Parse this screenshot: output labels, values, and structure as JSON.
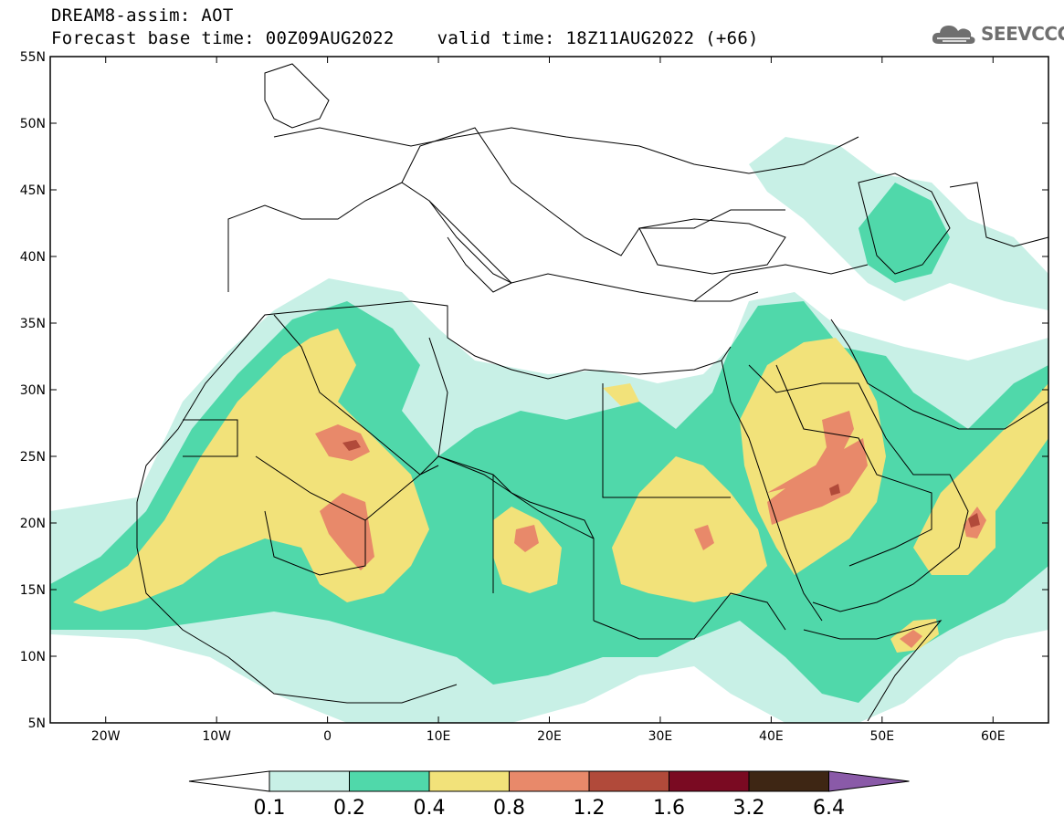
{
  "header": {
    "line1": "DREAM8-assim: AOT",
    "forecast_base": "Forecast base time: 00Z09AUG2022",
    "valid_time": "valid time: 18Z11AUG2022 (+66)"
  },
  "logo": {
    "text": "SEEVCCC",
    "icon": "cloud-logo-icon"
  },
  "map": {
    "lon_range": [
      -25,
      65
    ],
    "lat_range": [
      5,
      55
    ],
    "lat_ticks": [
      {
        "value": 55,
        "label": "55N"
      },
      {
        "value": 50,
        "label": "50N"
      },
      {
        "value": 45,
        "label": "45N"
      },
      {
        "value": 40,
        "label": "40N"
      },
      {
        "value": 35,
        "label": "35N"
      },
      {
        "value": 30,
        "label": "30N"
      },
      {
        "value": 25,
        "label": "25N"
      },
      {
        "value": 20,
        "label": "20N"
      },
      {
        "value": 15,
        "label": "15N"
      },
      {
        "value": 10,
        "label": "10N"
      },
      {
        "value": 5,
        "label": "5N"
      }
    ],
    "lon_ticks": [
      {
        "value": -20,
        "label": "20W"
      },
      {
        "value": -10,
        "label": "10W"
      },
      {
        "value": 0,
        "label": "0"
      },
      {
        "value": 10,
        "label": "10E"
      },
      {
        "value": 20,
        "label": "20E"
      },
      {
        "value": 30,
        "label": "30E"
      },
      {
        "value": 40,
        "label": "40E"
      },
      {
        "value": 50,
        "label": "50E"
      },
      {
        "value": 60,
        "label": "60E"
      }
    ]
  },
  "colorbar": {
    "bins": [
      {
        "color": "#c8f0e6"
      },
      {
        "color": "#50d8aa"
      },
      {
        "color": "#f2e27a"
      },
      {
        "color": "#e8896a"
      },
      {
        "color": "#b14a3a"
      },
      {
        "color": "#7a0a22"
      },
      {
        "color": "#3e2614"
      }
    ],
    "under_color": "#ffffff",
    "over_color": "#8a5aa8",
    "labels": [
      "0.1",
      "0.2",
      "0.4",
      "0.8",
      "1.2",
      "1.6",
      "3.2",
      "6.4"
    ]
  }
}
